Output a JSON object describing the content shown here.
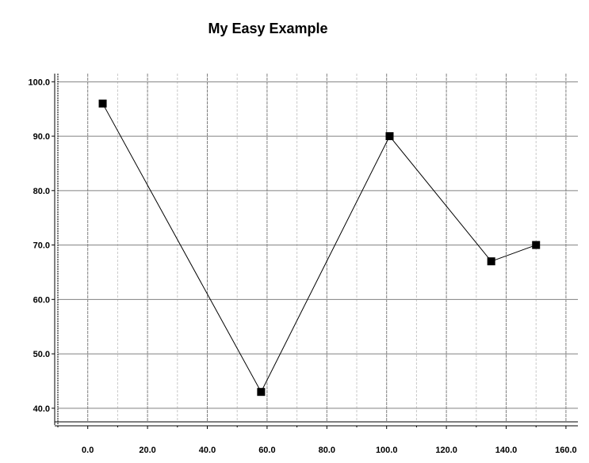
{
  "chart_data": {
    "type": "line",
    "title": "My Easy Example",
    "xlabel": "",
    "ylabel": "",
    "x": [
      5,
      58,
      101,
      135,
      150
    ],
    "y": [
      96,
      43,
      90,
      67,
      70
    ],
    "xlim": [
      -10,
      164
    ],
    "ylim": [
      37.5,
      101.5
    ],
    "x_ticks": [
      "0.0",
      "20.0",
      "40.0",
      "60.0",
      "80.0",
      "100.0",
      "120.0",
      "140.0",
      "160.0"
    ],
    "y_ticks": [
      "40.0",
      "50.0",
      "60.0",
      "70.0",
      "80.0",
      "90.0",
      "100.0"
    ],
    "grid": true,
    "marker": "square",
    "line_color": "#000000",
    "marker_color": "#000000",
    "grid_major_color": "#808080",
    "grid_minor_color": "#c8c8c8"
  }
}
